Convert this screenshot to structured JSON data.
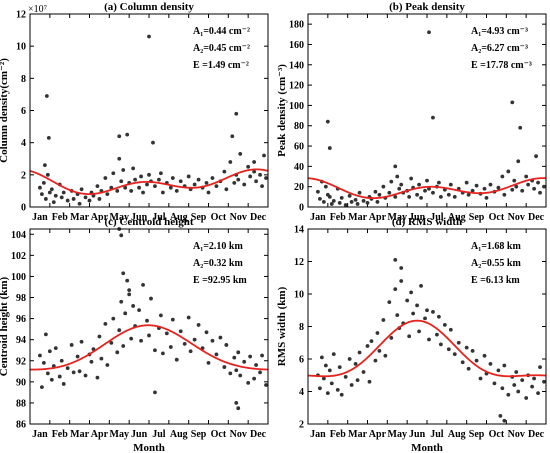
{
  "figure": {
    "month_labels": [
      "Jan",
      "Feb",
      "Mar",
      "Apr",
      "May",
      "Jun",
      "Jul",
      "Aug",
      "Sep",
      "Oct",
      "Nov",
      "Dec"
    ]
  },
  "chart_data": [
    {
      "type": "scatter",
      "title": "(a) Column density",
      "xlabel": "",
      "ylabel": "Column density(cm⁻²)",
      "y_multiplier": "×10⁷",
      "ylim": [
        0,
        12
      ],
      "yticks": [
        0,
        2,
        4,
        6,
        8,
        10,
        12
      ],
      "xlim": [
        0.5,
        12.5
      ],
      "annotations": [
        "A₁=0.44 cm⁻²",
        "A₂=0.45 cm⁻²",
        "E =1.49 cm⁻²"
      ],
      "fit": {
        "mean": 1.49,
        "a1": 0.44,
        "a2": 0.45,
        "phase1_month": 11.2,
        "phase2_month": 6.1,
        "color": "#e8231e"
      },
      "points": {
        "color": "#333333",
        "x": [
          1.0,
          1.1,
          1.2,
          1.3,
          1.4,
          1.5,
          1.6,
          1.7,
          1.8,
          2.0,
          2.1,
          2.2,
          2.4,
          2.6,
          2.7,
          2.9,
          3.0,
          3.1,
          3.3,
          3.5,
          3.6,
          3.7,
          3.9,
          4.0,
          4.1,
          4.3,
          4.4,
          4.6,
          4.7,
          4.9,
          5.0,
          5.1,
          5.2,
          5.3,
          5.5,
          5.6,
          5.7,
          5.8,
          6.0,
          6.1,
          6.2,
          6.4,
          6.5,
          6.6,
          6.8,
          7.0,
          7.1,
          7.2,
          7.4,
          7.6,
          7.7,
          7.9,
          8.1,
          8.3,
          8.5,
          8.6,
          8.8,
          9.0,
          9.2,
          9.4,
          9.5,
          9.7,
          9.9,
          10.1,
          10.3,
          10.4,
          10.6,
          10.8,
          10.9,
          11.0,
          11.1,
          11.3,
          11.5,
          11.6,
          11.8,
          11.9,
          12.1,
          12.2,
          12.4,
          1.35,
          1.45,
          1.25,
          5.4,
          6.5,
          6.7,
          10.9,
          10.7,
          5.0,
          11.8,
          12.3
        ],
        "y": [
          1.2,
          0.8,
          1.5,
          0.5,
          2.0,
          0.9,
          1.1,
          0.3,
          0.7,
          1.4,
          0.6,
          0.9,
          0.4,
          1.0,
          0.5,
          0.8,
          0.2,
          1.1,
          0.6,
          0.4,
          0.9,
          0.7,
          1.3,
          0.5,
          1.0,
          1.8,
          0.8,
          1.2,
          2.1,
          1.0,
          3.0,
          1.6,
          2.3,
          1.2,
          1.5,
          1.0,
          2.4,
          1.7,
          1.2,
          1.9,
          0.9,
          1.4,
          2.0,
          1.6,
          1.3,
          1.7,
          2.1,
          0.9,
          1.5,
          1.2,
          1.8,
          1.0,
          1.6,
          1.3,
          1.9,
          1.1,
          1.4,
          1.7,
          1.2,
          1.5,
          0.9,
          1.8,
          1.3,
          1.6,
          2.2,
          1.1,
          2.8,
          1.5,
          2.0,
          1.7,
          3.3,
          1.4,
          2.5,
          1.9,
          2.2,
          1.6,
          2.0,
          1.3,
          1.8,
          6.9,
          4.3,
          2.6,
          4.5,
          10.6,
          4.0,
          5.8,
          4.4,
          4.4,
          2.8,
          3.2
        ]
      }
    },
    {
      "type": "scatter",
      "title": "(b) Peak density",
      "xlabel": "",
      "ylabel": "Peak density (cm⁻³)",
      "ylim": [
        0,
        190
      ],
      "yticks": [
        0,
        20,
        40,
        60,
        80,
        100,
        120,
        140,
        160,
        180
      ],
      "xlim": [
        0.5,
        12.5
      ],
      "annotations": [
        "A₁=4.93 cm⁻³",
        "A₂=6.27 cm⁻³",
        "E =17.78 cm⁻³"
      ],
      "fit": {
        "mean": 17.78,
        "a1": 4.93,
        "a2": 6.27,
        "phase1_month": 11.5,
        "phase2_month": 6.5,
        "color": "#e8231e"
      },
      "points": {
        "color": "#333333",
        "x": [
          1.0,
          1.1,
          1.2,
          1.3,
          1.4,
          1.5,
          1.6,
          1.7,
          1.8,
          2.0,
          2.1,
          2.2,
          2.4,
          2.6,
          2.7,
          2.9,
          3.0,
          3.1,
          3.3,
          3.5,
          3.6,
          3.7,
          3.9,
          4.0,
          4.1,
          4.3,
          4.4,
          4.6,
          4.7,
          4.9,
          5.0,
          5.1,
          5.2,
          5.3,
          5.5,
          5.6,
          5.7,
          5.8,
          6.0,
          6.1,
          6.2,
          6.4,
          6.5,
          6.6,
          6.8,
          7.0,
          7.1,
          7.2,
          7.4,
          7.6,
          7.7,
          7.9,
          8.1,
          8.3,
          8.5,
          8.6,
          8.8,
          9.0,
          9.2,
          9.4,
          9.5,
          9.7,
          9.9,
          10.1,
          10.3,
          10.4,
          10.6,
          10.8,
          10.9,
          11.0,
          11.1,
          11.3,
          11.5,
          11.6,
          11.8,
          11.9,
          12.1,
          12.2,
          12.4,
          1.5,
          1.6,
          6.6,
          6.8,
          10.8,
          12.0,
          11.2,
          4.9
        ],
        "y": [
          15,
          8,
          25,
          5,
          20,
          12,
          10,
          3,
          6,
          18,
          4,
          9,
          2,
          11,
          5,
          7,
          3,
          14,
          6,
          4,
          10,
          8,
          15,
          5,
          12,
          20,
          9,
          14,
          25,
          10,
          30,
          18,
          22,
          14,
          16,
          10,
          28,
          19,
          12,
          22,
          9,
          16,
          26,
          18,
          14,
          20,
          24,
          10,
          17,
          12,
          22,
          10,
          18,
          14,
          24,
          12,
          16,
          21,
          13,
          18,
          9,
          22,
          15,
          19,
          30,
          12,
          35,
          17,
          26,
          20,
          45,
          16,
          30,
          22,
          26,
          18,
          24,
          14,
          20,
          84,
          58,
          172,
          88,
          103,
          50,
          78,
          40
        ]
      }
    },
    {
      "type": "scatter",
      "title": "(c) Centroid height",
      "xlabel": "Month",
      "ylabel": "Centroid height (km)",
      "ylim": [
        86,
        104.5
      ],
      "yticks": [
        86,
        88,
        90,
        92,
        94,
        96,
        98,
        100,
        102,
        104
      ],
      "xlim": [
        0.5,
        12.5
      ],
      "annotations": [
        "A₁=2.10 km",
        "A₂=0.32 km",
        "E =92.95 km"
      ],
      "fit": {
        "mean": 92.95,
        "a1": 2.1,
        "a2": 0.32,
        "phase1_month": 6.5,
        "phase2_month": 6.4,
        "color": "#e8231e"
      },
      "points": {
        "color": "#333333",
        "x": [
          1.0,
          1.1,
          1.2,
          1.3,
          1.4,
          1.5,
          1.6,
          1.7,
          1.8,
          2.0,
          2.1,
          2.2,
          2.4,
          2.6,
          2.7,
          2.9,
          3.0,
          3.1,
          3.3,
          3.5,
          3.6,
          3.7,
          3.9,
          4.0,
          4.1,
          4.3,
          4.4,
          4.6,
          4.7,
          4.9,
          5.0,
          5.1,
          5.2,
          5.3,
          5.5,
          5.6,
          5.7,
          5.8,
          6.0,
          6.1,
          6.2,
          6.4,
          6.5,
          6.6,
          6.8,
          7.0,
          7.1,
          7.2,
          7.4,
          7.6,
          7.7,
          7.9,
          8.1,
          8.3,
          8.5,
          8.6,
          8.8,
          9.0,
          9.2,
          9.4,
          9.5,
          9.7,
          9.9,
          10.1,
          10.3,
          10.4,
          10.6,
          10.8,
          10.9,
          11.0,
          11.1,
          11.3,
          11.5,
          11.6,
          11.8,
          11.9,
          12.1,
          12.2,
          12.4,
          5.0,
          5.1,
          5.2,
          5.4,
          5.5,
          10.9,
          11.0,
          6.8
        ],
        "y": [
          92.5,
          89.5,
          91.8,
          94.5,
          90.8,
          92.9,
          90.2,
          91.5,
          93.2,
          90.5,
          92.0,
          89.8,
          91.3,
          93.5,
          90.9,
          92.4,
          91.0,
          93.8,
          90.6,
          92.6,
          91.9,
          93.1,
          90.4,
          94.3,
          92.2,
          95.5,
          91.6,
          93.7,
          96.0,
          92.8,
          94.9,
          97.6,
          93.4,
          96.5,
          98.3,
          94.1,
          97.2,
          95.3,
          96.8,
          93.9,
          99.2,
          95.8,
          94.4,
          97.9,
          93.0,
          95.1,
          96.3,
          92.7,
          94.6,
          93.3,
          95.9,
          92.1,
          94.8,
          93.6,
          96.1,
          92.9,
          94.0,
          95.4,
          93.2,
          94.7,
          91.8,
          93.9,
          92.6,
          94.2,
          91.4,
          93.5,
          90.8,
          92.3,
          91.1,
          92.8,
          90.6,
          91.9,
          89.9,
          92.4,
          90.3,
          91.6,
          90.9,
          92.5,
          89.7,
          104.7,
          103.9,
          100.3,
          99.6,
          98.7,
          88.0,
          87.5,
          89.0
        ]
      }
    },
    {
      "type": "scatter",
      "title": "(d) RMS width",
      "xlabel": "Month",
      "ylabel": "RMS width (km)",
      "ylim": [
        2,
        14
      ],
      "yticks": [
        2,
        4,
        6,
        8,
        10,
        12,
        14
      ],
      "xlim": [
        0.5,
        12.5
      ],
      "annotations": [
        "A₁=1.68 km",
        "A₂=0.55 km",
        "E =6.13 km"
      ],
      "fit": {
        "mean": 6.13,
        "a1": 1.68,
        "a2": 0.55,
        "phase1_month": 6.0,
        "phase2_month": 6.0,
        "color": "#e8231e"
      },
      "points": {
        "color": "#333333",
        "x": [
          1.0,
          1.1,
          1.2,
          1.3,
          1.4,
          1.5,
          1.6,
          1.7,
          1.8,
          2.0,
          2.1,
          2.2,
          2.4,
          2.6,
          2.7,
          2.9,
          3.0,
          3.1,
          3.3,
          3.5,
          3.6,
          3.7,
          3.9,
          4.0,
          4.1,
          4.3,
          4.4,
          4.6,
          4.7,
          4.9,
          5.0,
          5.1,
          5.2,
          5.3,
          5.5,
          5.6,
          5.7,
          5.8,
          6.0,
          6.1,
          6.2,
          6.4,
          6.5,
          6.6,
          6.8,
          7.0,
          7.1,
          7.2,
          7.4,
          7.6,
          7.7,
          7.9,
          8.1,
          8.3,
          8.5,
          8.6,
          8.8,
          9.0,
          9.2,
          9.4,
          9.5,
          9.7,
          9.9,
          10.1,
          10.3,
          10.4,
          10.6,
          10.8,
          10.9,
          11.0,
          11.1,
          11.3,
          11.5,
          11.6,
          11.8,
          11.9,
          12.1,
          12.2,
          12.4,
          4.9,
          5.2,
          10.2,
          10.4
        ],
        "y": [
          5.0,
          4.2,
          6.1,
          4.8,
          5.6,
          3.9,
          5.3,
          4.5,
          6.3,
          4.1,
          5.5,
          3.8,
          4.9,
          6.0,
          4.4,
          5.7,
          4.7,
          6.4,
          5.2,
          6.8,
          4.6,
          7.1,
          5.9,
          7.6,
          6.5,
          8.4,
          6.2,
          9.5,
          7.3,
          10.3,
          8.7,
          7.9,
          10.8,
          8.2,
          9.6,
          7.4,
          10.1,
          8.8,
          9.3,
          7.7,
          10.5,
          8.5,
          9.0,
          7.2,
          8.9,
          7.5,
          8.6,
          6.9,
          8.1,
          6.6,
          7.8,
          6.3,
          7.0,
          5.8,
          6.7,
          5.4,
          6.5,
          5.9,
          4.8,
          6.2,
          5.1,
          5.7,
          4.5,
          5.3,
          4.2,
          5.6,
          3.8,
          4.9,
          4.4,
          5.2,
          4.0,
          4.7,
          3.6,
          5.0,
          4.3,
          4.8,
          3.9,
          5.5,
          4.6,
          12.1,
          11.6,
          2.5,
          2.2
        ]
      }
    }
  ]
}
